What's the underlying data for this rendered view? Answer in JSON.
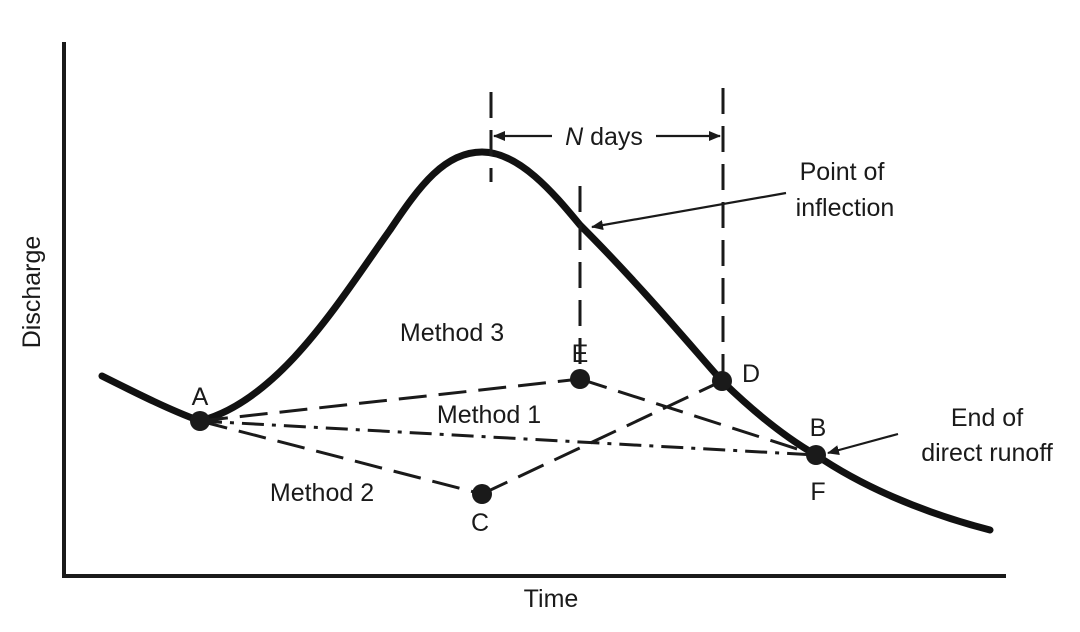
{
  "axes": {
    "x_label": "Time",
    "y_label": "Discharge"
  },
  "interval": {
    "var": "N",
    "unit": " days"
  },
  "annotations": {
    "inflection_line1": "Point of",
    "inflection_line2": "inflection",
    "runoff_line1": "End of",
    "runoff_line2": "direct runoff"
  },
  "methods": {
    "m1": "Method 1",
    "m2": "Method 2",
    "m3": "Method 3"
  },
  "points": {
    "A": "A",
    "B": "B",
    "C": "C",
    "D": "D",
    "E": "E",
    "F": "F"
  }
}
